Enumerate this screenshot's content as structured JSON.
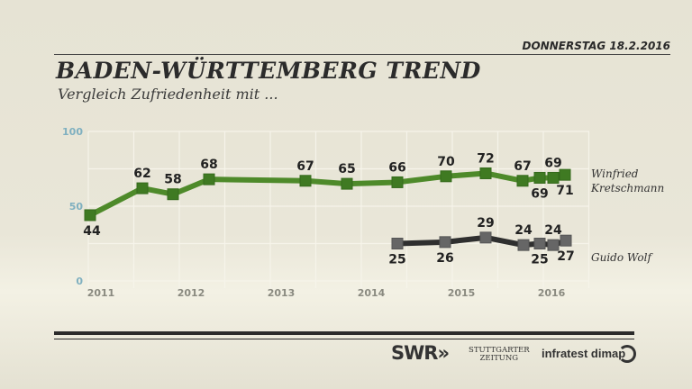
{
  "header": {
    "date": "DONNERSTAG 18.2.2016",
    "title": "BADEN-WÜRTTEMBERG TREND",
    "subtitle": "Vergleich Zufriedenheit mit ..."
  },
  "footer": {
    "swr": "SWR",
    "swr_arrows": "»",
    "stuttgarter_line1": "STUTTGARTER",
    "stuttgarter_line2": "ZEITUNG",
    "infratest": "infratest dimap"
  },
  "chart_data": {
    "type": "line",
    "ylim": [
      0,
      100
    ],
    "yticks": [
      "0",
      "50",
      "100"
    ],
    "xlim": [
      2011,
      2016.5
    ],
    "xticks": [
      "2011",
      "2012",
      "2013",
      "2014",
      "2015",
      "2016"
    ],
    "grid": true,
    "legend": "right, at line ends",
    "series": [
      {
        "name": "Winfried Kretschmann",
        "name_line1": "Winfried",
        "name_line2": "Kretschmann",
        "color": "#4e8a2a",
        "x": [
          2011.0,
          2011.58,
          2011.92,
          2012.32,
          2013.39,
          2013.85,
          2014.41,
          2014.95,
          2015.39,
          2015.8,
          2015.99,
          2016.14,
          2016.27
        ],
        "values": [
          44,
          62,
          58,
          68,
          67,
          65,
          66,
          70,
          72,
          67,
          69,
          69,
          71
        ],
        "label_pos": [
          "below",
          "above",
          "above",
          "above",
          "above",
          "above",
          "above",
          "above",
          "above",
          "above",
          "below",
          "above",
          "below"
        ]
      },
      {
        "name": "Guido Wolf",
        "name_line1": "Guido Wolf",
        "name_line2": "",
        "color": "#2f2f2f",
        "x": [
          2014.41,
          2014.94,
          2015.39,
          2015.81,
          2015.99,
          2016.14,
          2016.28
        ],
        "values": [
          25,
          26,
          29,
          24,
          25,
          24,
          27
        ],
        "label_pos": [
          "below",
          "below",
          "above",
          "above",
          "below",
          "above",
          "below"
        ]
      }
    ]
  }
}
